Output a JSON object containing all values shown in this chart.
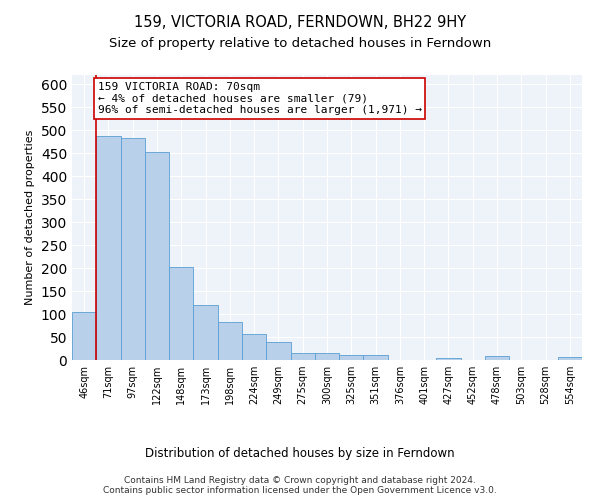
{
  "title": "159, VICTORIA ROAD, FERNDOWN, BH22 9HY",
  "subtitle": "Size of property relative to detached houses in Ferndown",
  "xlabel_bottom": "Distribution of detached houses by size in Ferndown",
  "ylabel": "Number of detached properties",
  "categories": [
    "46sqm",
    "71sqm",
    "97sqm",
    "122sqm",
    "148sqm",
    "173sqm",
    "198sqm",
    "224sqm",
    "249sqm",
    "275sqm",
    "300sqm",
    "325sqm",
    "351sqm",
    "376sqm",
    "401sqm",
    "427sqm",
    "452sqm",
    "478sqm",
    "503sqm",
    "528sqm",
    "554sqm"
  ],
  "values": [
    105,
    487,
    484,
    453,
    202,
    120,
    82,
    57,
    40,
    15,
    15,
    10,
    11,
    1,
    0,
    5,
    0,
    8,
    0,
    0,
    7
  ],
  "bar_color": "#b8d0ea",
  "bar_edge_color": "#5a9fd4",
  "vline_x_index": 0,
  "vline_color": "#cc0000",
  "annotation_text": "159 VICTORIA ROAD: 70sqm\n← 4% of detached houses are smaller (79)\n96% of semi-detached houses are larger (1,971) →",
  "annotation_box_color": "#cc0000",
  "ylim": [
    0,
    620
  ],
  "yticks": [
    0,
    50,
    100,
    150,
    200,
    250,
    300,
    350,
    400,
    450,
    500,
    550,
    600
  ],
  "plot_bg_color": "#eef2f9",
  "grid_color": "#ffffff",
  "footer": "Contains HM Land Registry data © Crown copyright and database right 2024.\nContains public sector information licensed under the Open Government Licence v3.0.",
  "title_fontsize": 10.5,
  "subtitle_fontsize": 9.5,
  "annotation_fontsize": 8,
  "footer_fontsize": 6.5,
  "ylabel_fontsize": 8,
  "xlabel_fontsize": 8.5,
  "tick_fontsize": 7
}
